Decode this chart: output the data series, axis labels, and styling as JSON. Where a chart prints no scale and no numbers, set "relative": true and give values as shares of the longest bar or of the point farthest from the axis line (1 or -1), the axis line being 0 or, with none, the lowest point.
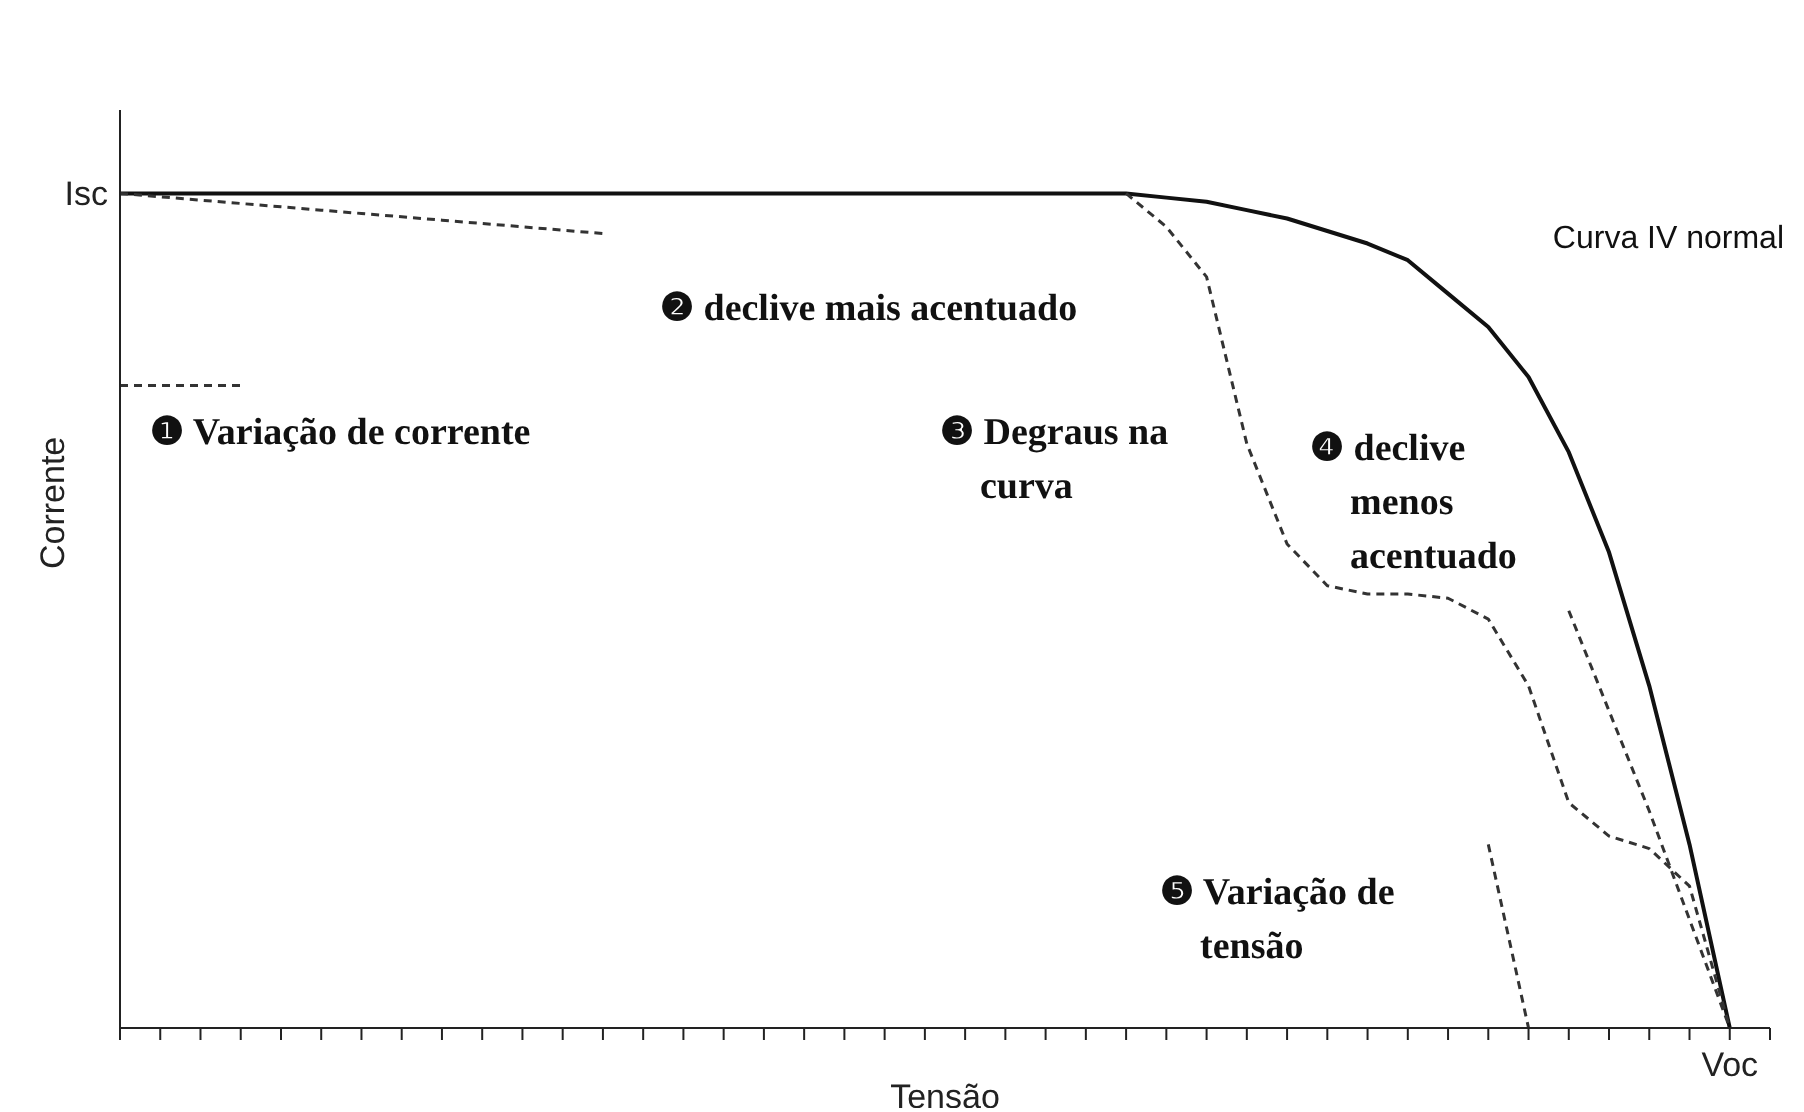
{
  "chart_data": {
    "type": "line",
    "relative": true,
    "xlabel": "Tensão",
    "ylabel": "Corrente",
    "categories": [
      null,
      null,
      null,
      null,
      null,
      null,
      null,
      null,
      null,
      null,
      null,
      null,
      null,
      null,
      null,
      null,
      null,
      null,
      null,
      null,
      null,
      null,
      null,
      null,
      null,
      null,
      null,
      null,
      null,
      null,
      null,
      null,
      null,
      null,
      null,
      null,
      null,
      null,
      null,
      null,
      null,
      null
    ],
    "series": [
      {
        "color": "#111111",
        "line_style": "solid",
        "values": [
          1,
          1,
          1,
          1,
          1,
          1,
          1,
          1,
          1,
          1,
          1,
          1,
          1,
          1,
          1,
          1,
          1,
          1,
          1,
          1,
          1,
          1,
          1,
          1,
          1,
          1,
          0.995,
          0.99,
          0.98,
          0.97,
          0.955,
          0.94,
          0.92,
          0.88,
          0.84,
          0.78,
          0.69,
          0.57,
          0.41,
          0.22,
          0,
          null
        ]
      },
      {
        "color": "#333333",
        "line_style": "dashed",
        "values": [
          null,
          null,
          null,
          null,
          null,
          null,
          null,
          null,
          null,
          null,
          null,
          null,
          null,
          null,
          null,
          null,
          null,
          null,
          null,
          null,
          null,
          null,
          null,
          null,
          null,
          1,
          0.96,
          0.9,
          0.7,
          0.58,
          0.53,
          0.52,
          0.52,
          0.515,
          0.49,
          0.41,
          0.27,
          0.23,
          0.215,
          0.17,
          0,
          null
        ]
      },
      {
        "color": "#333333",
        "line_style": "dashed",
        "values": [
          1,
          0.996,
          0.992,
          0.988,
          0.984,
          0.98,
          0.976,
          0.972,
          0.968,
          0.964,
          0.96,
          0.956,
          0.952,
          null,
          null,
          null,
          null,
          null,
          null,
          null,
          null,
          null,
          null,
          null,
          null,
          null,
          null,
          null,
          null,
          null,
          null,
          null,
          null,
          null,
          null,
          null,
          null,
          null,
          null,
          null,
          null,
          null
        ]
      },
      {
        "color": "#333333",
        "line_style": "dashed",
        "values": [
          0.77,
          0.77,
          0.77,
          0.77,
          null,
          null,
          null,
          null,
          null,
          null,
          null,
          null,
          null,
          null,
          null,
          null,
          null,
          null,
          null,
          null,
          null,
          null,
          null,
          null,
          null,
          null,
          null,
          null,
          null,
          null,
          null,
          null,
          null,
          null,
          null,
          null,
          null,
          null,
          null,
          null,
          null,
          null
        ]
      },
      {
        "color": "#333333",
        "line_style": "dashed",
        "values": [
          null,
          null,
          null,
          null,
          null,
          null,
          null,
          null,
          null,
          null,
          null,
          null,
          null,
          null,
          null,
          null,
          null,
          null,
          null,
          null,
          null,
          null,
          null,
          null,
          null,
          null,
          null,
          null,
          null,
          null,
          null,
          null,
          null,
          null,
          null,
          null,
          0.5,
          0.38,
          0.26,
          0.13,
          0,
          null
        ]
      },
      {
        "color": "#333333",
        "line_style": "dashed",
        "values": [
          null,
          null,
          null,
          null,
          null,
          null,
          null,
          null,
          null,
          null,
          null,
          null,
          null,
          null,
          null,
          null,
          null,
          null,
          null,
          null,
          null,
          null,
          null,
          null,
          null,
          null,
          null,
          null,
          null,
          null,
          null,
          null,
          null,
          null,
          0.22,
          0,
          null,
          null,
          null,
          null,
          null,
          null
        ]
      }
    ],
    "annotations": [
      "Isc",
      "Voc",
      "Curva IV normal",
      "❷ declive mais acentuado",
      "❶ Variação de corrente",
      "❸ Degraus na curva",
      "❹ declive menos acentuado",
      "❺ Variação de tensão"
    ]
  }
}
